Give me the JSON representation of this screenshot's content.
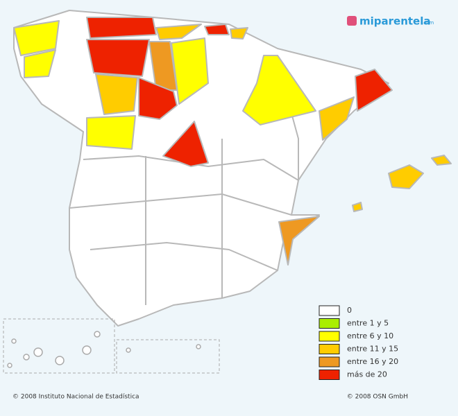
{
  "logo": {
    "name": "miparentela",
    "suffix": ".com"
  },
  "legend": [
    {
      "label": "0",
      "color": "#ffffff"
    },
    {
      "label": "entre 1 y 5",
      "color": "#aaee00"
    },
    {
      "label": "entre 6 y 10",
      "color": "#ffff00"
    },
    {
      "label": "entre 11 y 15",
      "color": "#ffcc00"
    },
    {
      "label": "entre 16 y 20",
      "color": "#ee9922"
    },
    {
      "label": "más de 20",
      "color": "#ee2200"
    }
  ],
  "footer": {
    "left": "© 2008 Instituto Nacional de Estadística",
    "right": "© 2008 OSN GmbH"
  }
}
